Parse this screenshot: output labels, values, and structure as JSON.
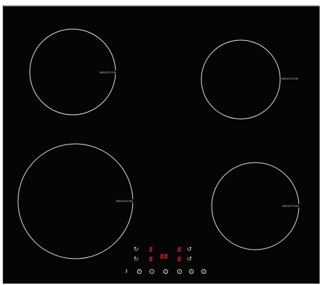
{
  "zones": [
    {
      "id": "rear-left",
      "label": "INDUCTION"
    },
    {
      "id": "rear-right",
      "label": "INDUCTION"
    },
    {
      "id": "front-left",
      "label": "INDUCTION"
    },
    {
      "id": "front-right",
      "label": "INDUCTION"
    }
  ],
  "control_panel": {
    "displays": {
      "top_left": "8",
      "top_right": "8",
      "bottom_left": "8",
      "timer": "88",
      "bottom_right": "8"
    },
    "icons": [
      "rotate-left-icon",
      "rotate-right-icon",
      "key-lock-icon",
      "minus-icon",
      "plus-icon",
      "power-icon"
    ]
  },
  "colors": {
    "glass": "#050505",
    "ring": "#e6e6e6",
    "display": "#e02020",
    "frame": "#b9b9b9"
  }
}
